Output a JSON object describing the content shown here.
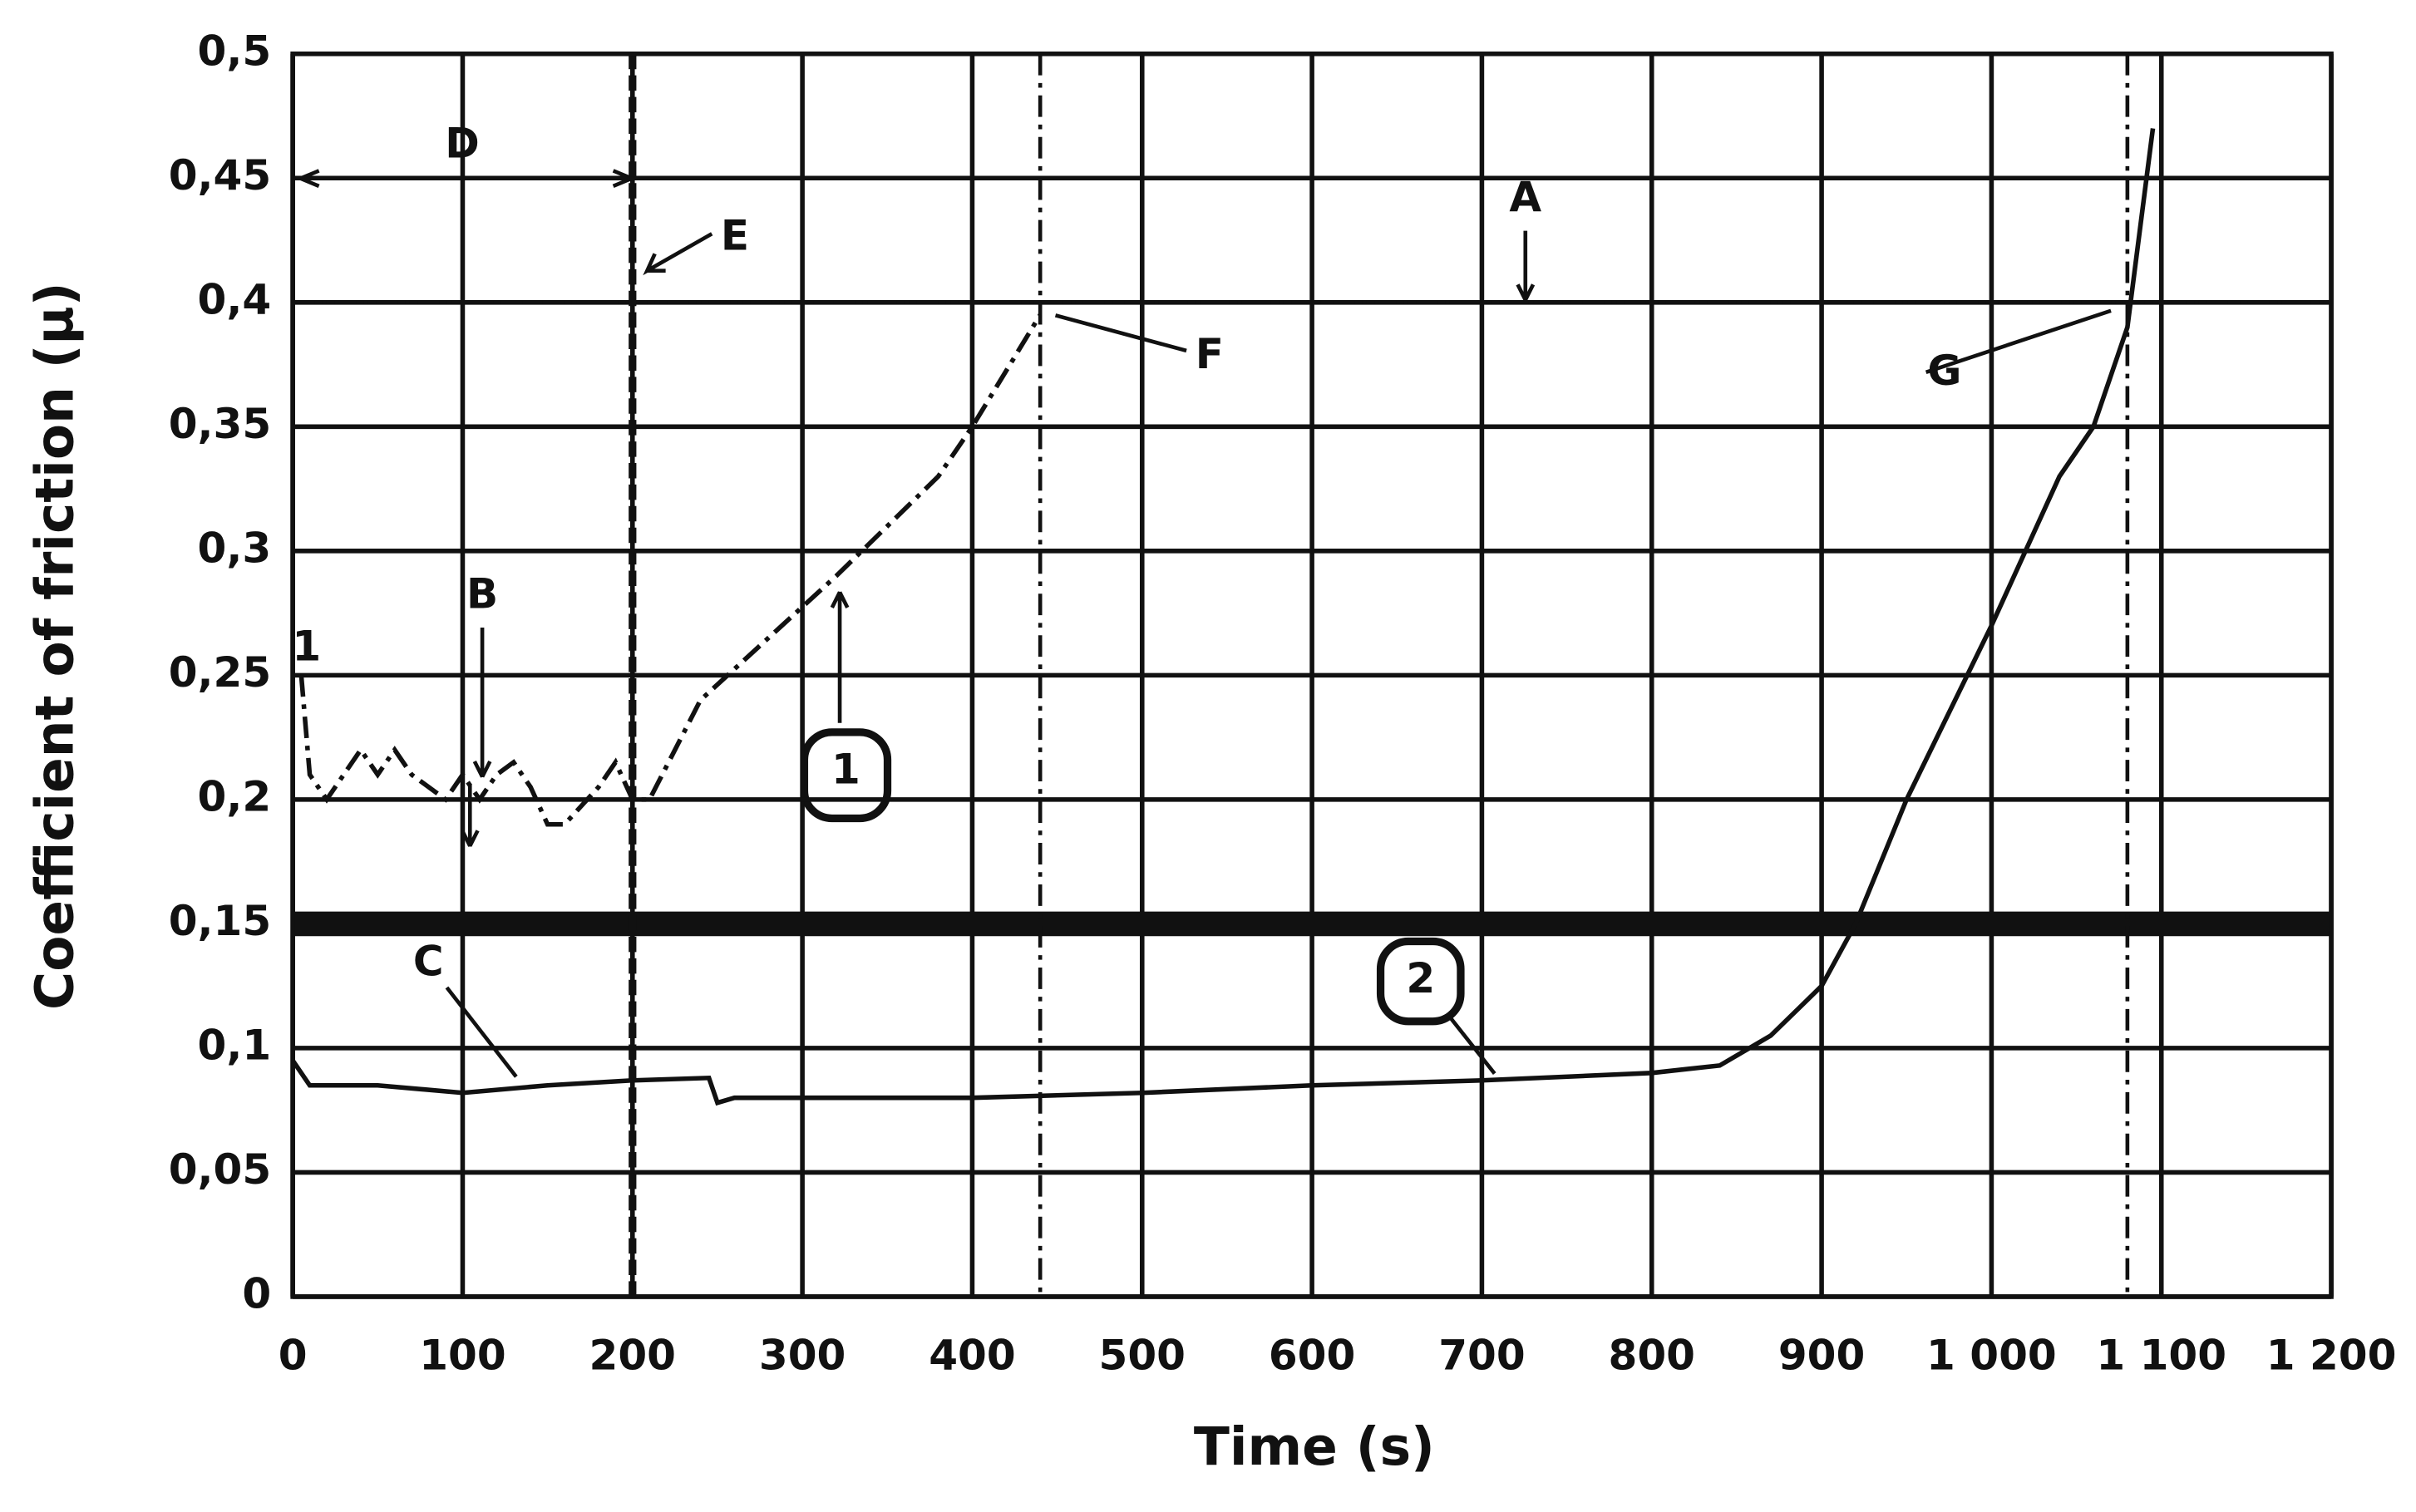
{
  "chart_data": {
    "type": "line",
    "xlabel": "Time (s)",
    "ylabel": "Coefficient of friction (µ)",
    "xlim": [
      0,
      1200
    ],
    "ylim": [
      0,
      0.5
    ],
    "xticks": [
      0,
      100,
      200,
      300,
      400,
      500,
      600,
      700,
      800,
      900,
      {
        "value": 1000,
        "label": "1 000"
      },
      {
        "value": 1100,
        "label": "1 100"
      },
      {
        "value": 1200,
        "label": "1 200"
      }
    ],
    "yticks": [
      0,
      {
        "value": 0.05,
        "label": "0,05"
      },
      {
        "value": 0.1,
        "label": "0,1"
      },
      {
        "value": 0.15,
        "label": "0,15"
      },
      {
        "value": 0.2,
        "label": "0,2"
      },
      {
        "value": 0.25,
        "label": "0,25"
      },
      {
        "value": 0.3,
        "label": "0,3"
      },
      {
        "value": 0.35,
        "label": "0,35"
      },
      {
        "value": 0.4,
        "label": "0,4"
      },
      {
        "value": 0.45,
        "label": "0,45"
      },
      {
        "value": 0.5,
        "label": "0,5"
      }
    ],
    "grid": true,
    "series": [
      {
        "color": "#111111",
        "dash": "dashdot",
        "x": [
          5,
          10,
          20,
          30,
          40,
          50,
          60,
          70,
          80,
          90,
          100,
          110,
          120,
          130,
          140,
          150,
          160,
          180,
          190,
          200,
          210,
          240,
          320,
          380,
          400,
          440
        ],
        "values": [
          0.25,
          0.21,
          0.2,
          0.21,
          0.22,
          0.21,
          0.22,
          0.21,
          0.205,
          0.2,
          0.21,
          0.2,
          0.21,
          0.215,
          0.205,
          0.19,
          0.19,
          0.205,
          0.215,
          0.2,
          0.2,
          0.24,
          0.29,
          0.33,
          0.35,
          0.395
        ]
      },
      {
        "color": "#111111",
        "dash": "solid",
        "x": [
          0,
          10,
          50,
          100,
          150,
          200,
          245,
          250,
          260,
          400,
          500,
          600,
          700,
          800,
          840,
          870,
          900,
          920,
          950,
          1000,
          1040,
          1060,
          1080,
          1095
        ],
        "values": [
          0.095,
          0.085,
          0.085,
          0.082,
          0.085,
          0.087,
          0.088,
          0.078,
          0.08,
          0.08,
          0.082,
          0.085,
          0.087,
          0.09,
          0.093,
          0.105,
          0.125,
          0.15,
          0.2,
          0.27,
          0.33,
          0.35,
          0.39,
          0.47
        ]
      }
    ],
    "hlines": [
      0.15,
      0.4
    ],
    "vlines": [
      200,
      440,
      1080
    ],
    "annotations": [
      "D",
      "E",
      "A",
      "F",
      "G",
      "B",
      "C",
      "1",
      "2",
      "1"
    ]
  }
}
